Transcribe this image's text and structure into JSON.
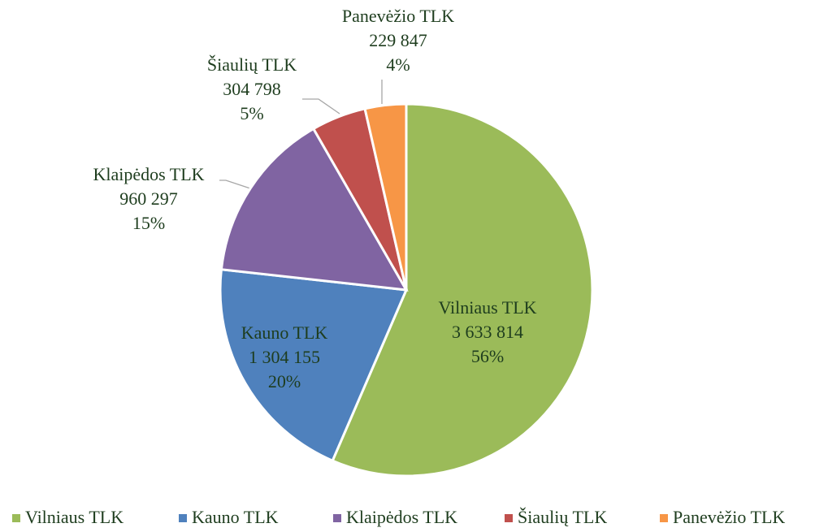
{
  "chart_data": {
    "type": "pie",
    "categories": [
      "Vilniaus TLK",
      "Kauno TLK",
      "Klaipėdos TLK",
      "Šiaulių TLK",
      "Panevėžio TLK"
    ],
    "values": [
      3633814,
      1304155,
      960297,
      304798,
      229847
    ],
    "value_labels": [
      "3 633 814",
      "1 304 155",
      "960 297",
      "304 798",
      "229 847"
    ],
    "percents": [
      56,
      20,
      15,
      5,
      4
    ],
    "percent_labels": [
      "56%",
      "20%",
      "15%",
      "5%",
      "4%"
    ],
    "colors": [
      "#9bbb59",
      "#4f81bd",
      "#8064a2",
      "#c0504d",
      "#f79646"
    ],
    "legend": "bottom"
  }
}
